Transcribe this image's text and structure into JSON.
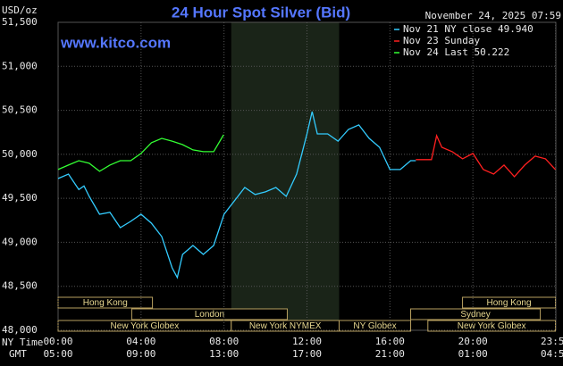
{
  "chart_data": {
    "type": "line",
    "title": "24 Hour Spot Silver (Bid)",
    "date": "November 24, 2025 07:59",
    "watermark": "www.kitco.com",
    "y_unit": "USD/oz",
    "x_row_labels": [
      "NY Time",
      "GMT"
    ],
    "ylim": [
      48000,
      51500
    ],
    "yticks": [
      {
        "value": 48000,
        "label": "48,000"
      },
      {
        "value": 48500,
        "label": "48,500"
      },
      {
        "value": 49000,
        "label": "49,000"
      },
      {
        "value": 49500,
        "label": "49,500"
      },
      {
        "value": 50000,
        "label": "50,000"
      },
      {
        "value": 50500,
        "label": "50,500"
      },
      {
        "value": 51000,
        "label": "51,000"
      },
      {
        "value": 51500,
        "label": "51,500"
      }
    ],
    "xlim": [
      0,
      24
    ],
    "xticks": [
      {
        "value": 0,
        "label": "00:00"
      },
      {
        "value": 4,
        "label": "04:00"
      },
      {
        "value": 8,
        "label": "08:00"
      },
      {
        "value": 12,
        "label": "12:00"
      },
      {
        "value": 16,
        "label": "16:00"
      },
      {
        "value": 20,
        "label": "20:00"
      },
      {
        "value": 23.983,
        "label": "23:59"
      }
    ],
    "gmt_ticks": [
      "05:00",
      "09:00",
      "13:00",
      "17:00",
      "21:00",
      "01:00",
      "04:59"
    ],
    "grid": true,
    "sessions": [
      {
        "label": "Hong Kong",
        "start": 0,
        "end": 4.55,
        "row": 0
      },
      {
        "label": "London",
        "start": 3.55,
        "end": 11.05,
        "row": 1
      },
      {
        "label": "New York Globex",
        "start": 0,
        "end": 8.35,
        "row": 2
      },
      {
        "label": "New York NYMEX",
        "start": 8.35,
        "end": 13.55,
        "row": 2
      },
      {
        "label": "NY Globex",
        "start": 13.55,
        "end": 17.0,
        "row": 2
      },
      {
        "label": "Hong Kong",
        "start": 19.5,
        "end": 23.98,
        "row": 0
      },
      {
        "label": "Sydney",
        "start": 17.0,
        "end": 23.25,
        "row": 1
      },
      {
        "label": "New York Globex",
        "start": 17.83,
        "end": 23.98,
        "row": 2
      }
    ],
    "series": [
      {
        "name": "Nov 21 NY close 49.940",
        "color": "#33ccff",
        "x": [
          0,
          0.5,
          1,
          1.25,
          1.5,
          2,
          2.5,
          3,
          3.5,
          4,
          4.5,
          5,
          5.5,
          5.75,
          6,
          6.5,
          7,
          7.5,
          8,
          8.5,
          9,
          9.5,
          10,
          10.5,
          11,
          11.5,
          12,
          12.25,
          12.5,
          13,
          13.5,
          14,
          14.5,
          15,
          15.5,
          16,
          16.5,
          17,
          17.25
        ],
        "values": [
          49725,
          49775,
          49600,
          49640,
          49522,
          49319,
          49340,
          49167,
          49238,
          49319,
          49217,
          49065,
          48710,
          48600,
          48862,
          48964,
          48862,
          48964,
          49319,
          49471,
          49623,
          49543,
          49573,
          49623,
          49522,
          49775,
          50232,
          50486,
          50232,
          50232,
          50150,
          50283,
          50334,
          50181,
          50080,
          49827,
          49827,
          49928,
          49928
        ]
      },
      {
        "name": "Nov 23 Sunday",
        "color": "#ff2020",
        "x": [
          17.25,
          18,
          18.25,
          18.5,
          19,
          19.5,
          20,
          20.5,
          21,
          21.5,
          22,
          22.5,
          23,
          23.5,
          23.98
        ],
        "values": [
          49940,
          49940,
          50212,
          50080,
          50030,
          49949,
          50010,
          49827,
          49775,
          49878,
          49746,
          49878,
          49979,
          49949,
          49827
        ]
      },
      {
        "name": "Nov 24 Last 50.222",
        "color": "#33ff33",
        "x": [
          0,
          0.5,
          1,
          1.5,
          2,
          2.5,
          3,
          3.5,
          4,
          4.5,
          5,
          5.5,
          6,
          6.5,
          7,
          7.5,
          7.98
        ],
        "values": [
          49827,
          49878,
          49928,
          49898,
          49807,
          49878,
          49928,
          49928,
          50010,
          50131,
          50181,
          50150,
          50110,
          50050,
          50030,
          50030,
          50222
        ]
      }
    ]
  }
}
